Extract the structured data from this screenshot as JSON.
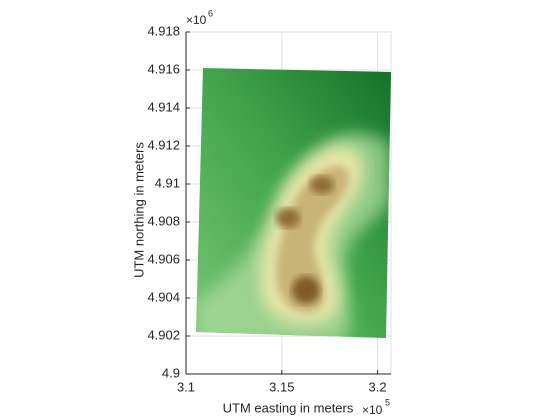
{
  "chart_data": {
    "type": "raster-map",
    "xlabel": "UTM easting in meters",
    "ylabel": "UTM northing in meters",
    "x_multiplier": "×10",
    "x_exponent": "5",
    "y_multiplier": "×10",
    "y_exponent": "6",
    "xlim": [
      3.1,
      3.207
    ],
    "xticks": [
      3.1,
      3.15,
      3.2
    ],
    "ylim": [
      4.9,
      4.918
    ],
    "yticks": [
      4.9,
      4.902,
      4.904,
      4.906,
      4.908,
      4.91,
      4.912,
      4.914,
      4.916,
      4.918
    ],
    "grid": true
  }
}
